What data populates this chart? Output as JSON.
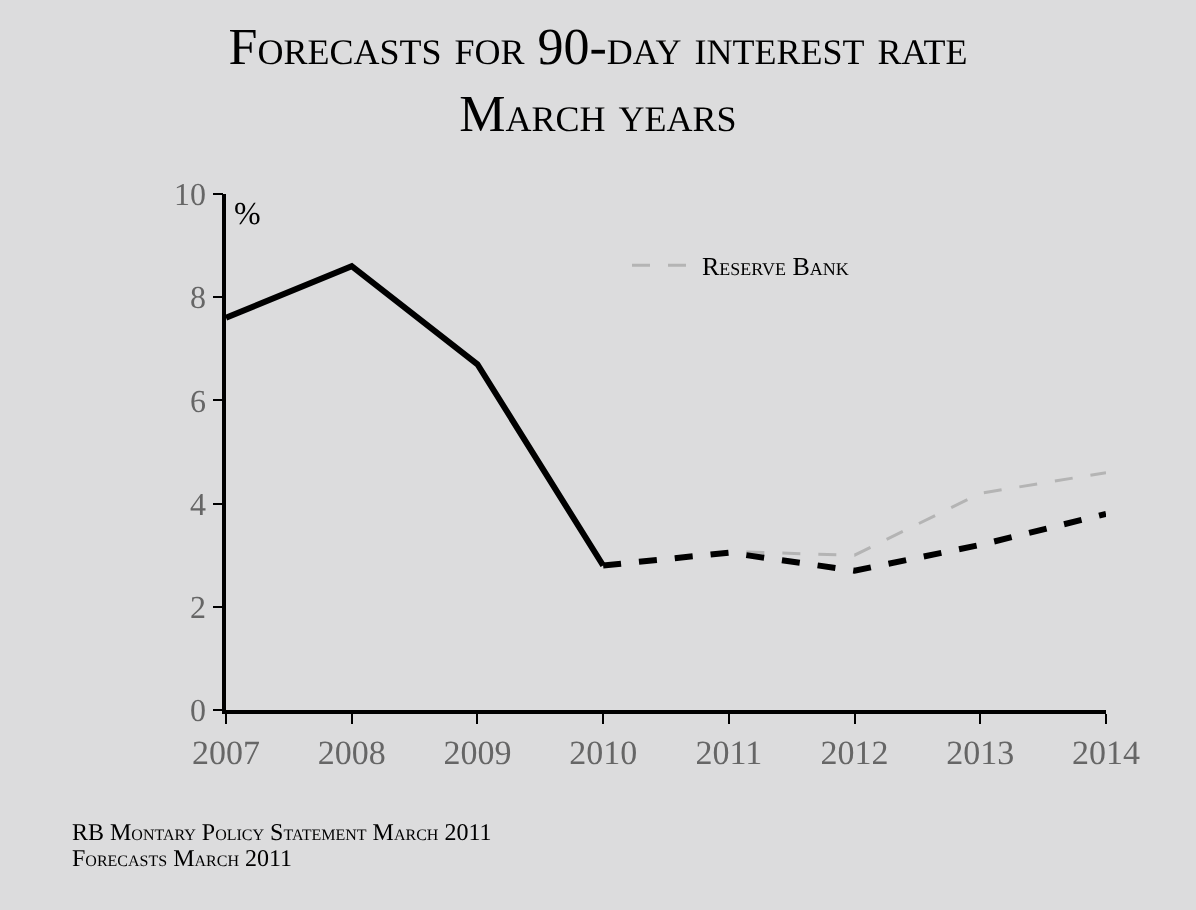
{
  "chart_data": {
    "type": "line",
    "title": "Forecasts for 90-day interest rate",
    "subtitle": "March years",
    "ylabel": "%",
    "categories": [
      "2007",
      "2008",
      "2009",
      "2010",
      "2011",
      "2012",
      "2013",
      "2014"
    ],
    "series": [
      {
        "name": "Reserve Bank",
        "color": "#b4b4b4",
        "line_style": "dashed",
        "values": [
          null,
          null,
          null,
          2.8,
          3.07,
          3.0,
          4.2,
          4.6
        ]
      },
      {
        "color": "#000000",
        "line_style": "solid",
        "values": [
          7.6,
          8.6,
          6.7,
          2.8,
          null,
          null,
          null,
          null
        ]
      },
      {
        "color": "#000000",
        "line_style": "dashed",
        "values": [
          null,
          null,
          null,
          2.8,
          3.05,
          2.7,
          3.2,
          3.8
        ]
      }
    ],
    "ylim": [
      0,
      10
    ],
    "yticks": [
      0,
      2,
      4,
      6,
      8,
      10
    ],
    "grid": false,
    "legend": "top right",
    "marker": "none",
    "annotations": [
      "RB Montary Policy Statement March 2011",
      "Forecasts March 2011"
    ]
  }
}
